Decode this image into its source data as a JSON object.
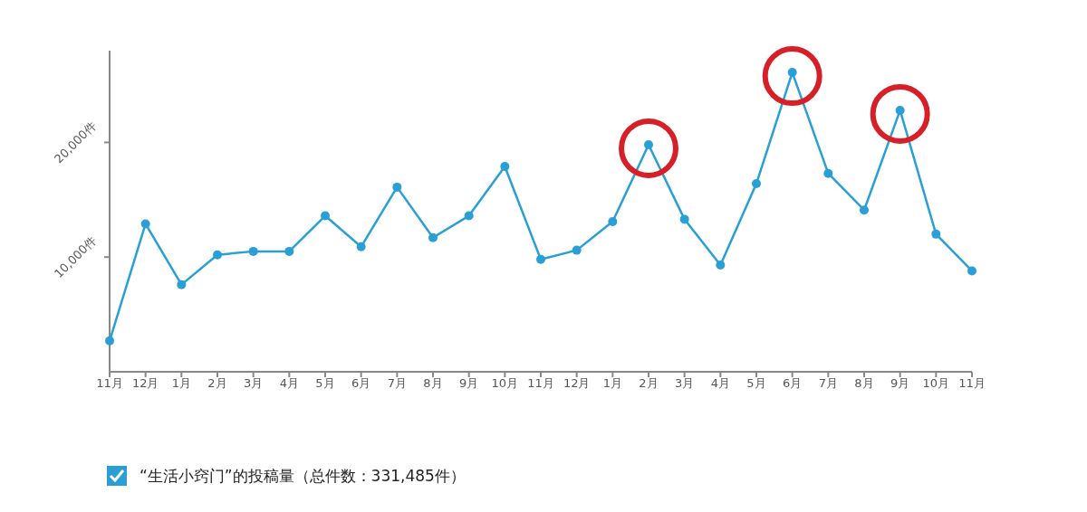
{
  "chart_data": {
    "type": "line",
    "categories": [
      "11月",
      "12月",
      "1月",
      "2月",
      "3月",
      "4月",
      "5月",
      "6月",
      "7月",
      "8月",
      "9月",
      "10月",
      "11月",
      "12月",
      "1月",
      "2月",
      "3月",
      "4月",
      "5月",
      "6月",
      "7月",
      "8月",
      "9月",
      "10月",
      "11月"
    ],
    "series": [
      {
        "name": "“生活小窍门”的投稿量（总件数：331,485件）",
        "color": "#2a9fd6",
        "values": [
          2700,
          12900,
          7600,
          10200,
          10500,
          10500,
          13600,
          10900,
          16100,
          11700,
          13600,
          17900,
          9800,
          10600,
          13100,
          19800,
          13300,
          9300,
          16400,
          26100,
          17300,
          14100,
          22800,
          12000,
          8800
        ]
      }
    ],
    "ylim": [
      0,
      28000
    ],
    "yticks": [
      {
        "value": 10000,
        "label": "10,000件"
      },
      {
        "value": 20000,
        "label": "20,000件"
      }
    ],
    "grid": false,
    "legend": "bottom left",
    "marker": "circle",
    "line_style": "solid"
  }
}
